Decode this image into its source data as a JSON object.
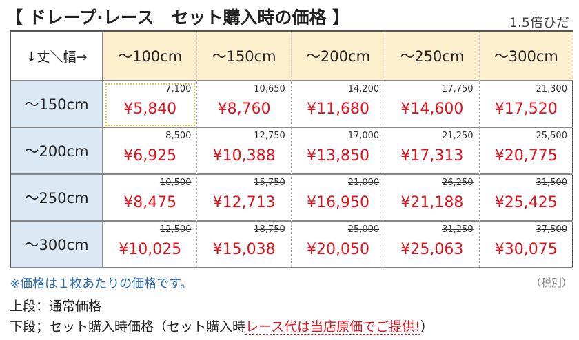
{
  "header": {
    "title": "【 ドレープ·レース　セット購入時の価格 】",
    "note": "1.5倍ひだ"
  },
  "table": {
    "corner": "↓丈＼幅→",
    "columns": [
      "～100cm",
      "～150cm",
      "～200cm",
      "～250cm",
      "～300cm"
    ],
    "rows": [
      {
        "label": "～150cm",
        "cells": [
          {
            "regular": "7,100",
            "set": "¥5,840"
          },
          {
            "regular": "10,650",
            "set": "¥8,760"
          },
          {
            "regular": "14,200",
            "set": "¥11,680"
          },
          {
            "regular": "17,750",
            "set": "¥14,600"
          },
          {
            "regular": "21,300",
            "set": "¥17,520"
          }
        ]
      },
      {
        "label": "～200cm",
        "cells": [
          {
            "regular": "8,500",
            "set": "¥6,925"
          },
          {
            "regular": "12,750",
            "set": "¥10,388"
          },
          {
            "regular": "17,000",
            "set": "¥13,850"
          },
          {
            "regular": "21,250",
            "set": "¥17,313"
          },
          {
            "regular": "25,500",
            "set": "¥20,775"
          }
        ]
      },
      {
        "label": "～250cm",
        "cells": [
          {
            "regular": "10,500",
            "set": "¥8,475"
          },
          {
            "regular": "15,750",
            "set": "¥12,713"
          },
          {
            "regular": "21,000",
            "set": "¥16,950"
          },
          {
            "regular": "26,250",
            "set": "¥21,188"
          },
          {
            "regular": "31,500",
            "set": "¥25,425"
          }
        ]
      },
      {
        "label": "～300cm",
        "cells": [
          {
            "regular": "12,500",
            "set": "¥10,025"
          },
          {
            "regular": "18,750",
            "set": "¥15,038"
          },
          {
            "regular": "25,000",
            "set": "¥20,050"
          },
          {
            "regular": "31,250",
            "set": "¥25,063"
          },
          {
            "regular": "37,500",
            "set": "¥30,075"
          }
        ]
      }
    ]
  },
  "footer": {
    "note": "※価格は１枚あたりの価格です。",
    "tax": "（税別）",
    "line1": "上段：通常価格",
    "line2_prefix": "下段；セット購入時価格（セット購入時",
    "line2_highlight": "レース代は当店原価でご提供!",
    "line2_suffix": "）"
  }
}
